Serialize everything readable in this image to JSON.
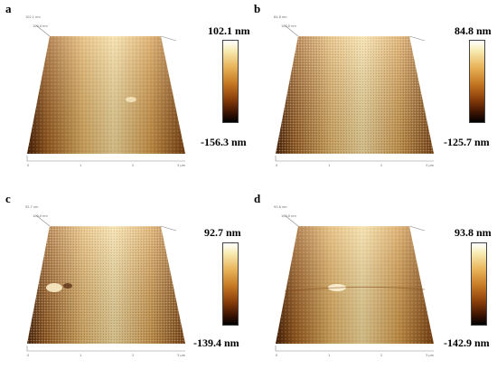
{
  "panels": [
    {
      "letter": "a",
      "scale_max": "102.1 nm",
      "scale_min": "-156.3 nm",
      "tick_top": "102.1 nm",
      "tick_side": "100.0 nm"
    },
    {
      "letter": "b",
      "scale_max": "84.8 nm",
      "scale_min": "-125.7 nm",
      "tick_top": "84.8 nm",
      "tick_side": "100.0 nm"
    },
    {
      "letter": "c",
      "scale_max": "92.7 nm",
      "scale_min": "-139.4 nm",
      "tick_top": "92.7 nm",
      "tick_side": "100.0 nm"
    },
    {
      "letter": "d",
      "scale_max": "93.8 nm",
      "scale_min": "-142.9 nm",
      "tick_top": "93.8 nm",
      "tick_side": "100.0 nm"
    }
  ],
  "axis_ticks": [
    "0",
    "1",
    "2",
    "3 μm"
  ],
  "colors": {
    "light": "#f4e2a6",
    "mid": "#d9a24c",
    "dark": "#5a2a08"
  }
}
